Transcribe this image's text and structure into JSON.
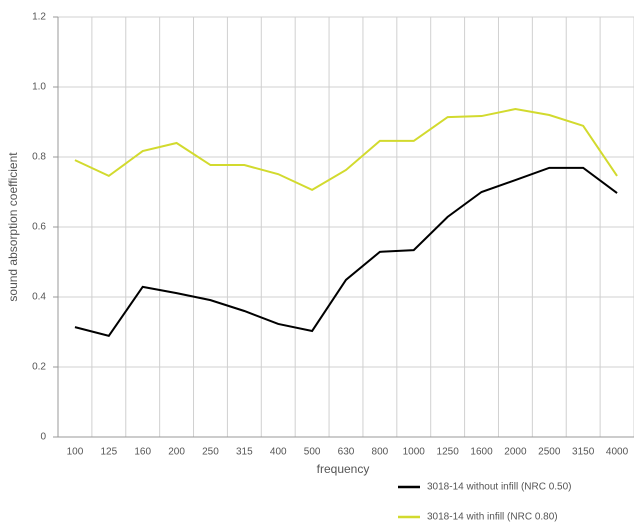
{
  "chart_data": {
    "type": "line",
    "x_label": "frequency",
    "y_label": "sound absorption coefficient",
    "categories": [
      "100",
      "125",
      "160",
      "200",
      "250",
      "315",
      "400",
      "500",
      "630",
      "800",
      "1000",
      "1250",
      "1600",
      "2000",
      "2500",
      "3150",
      "4000"
    ],
    "series": [
      {
        "name": "3018-14 without infill (NRC 0.50)",
        "color": "#000000",
        "values": [
          0.314,
          0.289,
          0.429,
          0.411,
          0.391,
          0.36,
          0.323,
          0.303,
          0.449,
          0.529,
          0.534,
          0.629,
          0.7,
          0.734,
          0.769,
          0.769,
          0.697
        ]
      },
      {
        "name": "3018-14 with infill (NRC 0.80)",
        "color": "#d2da2e",
        "values": [
          0.791,
          0.746,
          0.817,
          0.84,
          0.777,
          0.777,
          0.751,
          0.706,
          0.763,
          0.846,
          0.846,
          0.914,
          0.917,
          0.937,
          0.92,
          0.889,
          0.746
        ]
      }
    ],
    "ylim": [
      0,
      1.2
    ],
    "yticks": [
      0,
      0.2,
      0.4,
      0.6,
      0.8,
      {
        "value": 1.0,
        "label": "1.0"
      },
      1.2
    ],
    "grid": true
  }
}
